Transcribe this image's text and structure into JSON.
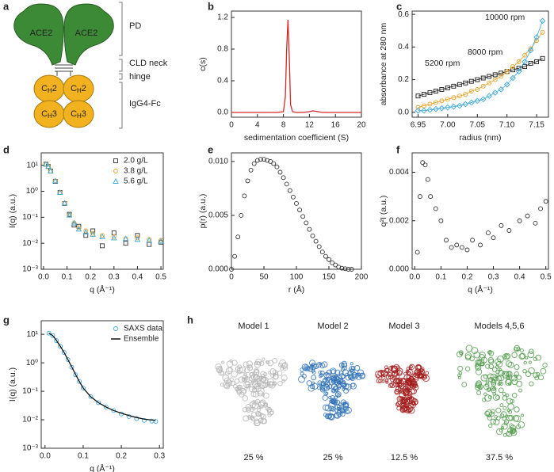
{
  "schematic": {
    "panel": "a",
    "domains": [
      "ACE2",
      "ACE2"
    ],
    "brackets": [
      "PD",
      "CLD neck",
      "hinge",
      "IgG4-Fc"
    ],
    "fc": [
      {
        "c": "C",
        "sub": "H",
        "num": "2"
      },
      {
        "c": "C",
        "sub": "H",
        "num": "2"
      },
      {
        "c": "C",
        "sub": "H",
        "num": "3"
      },
      {
        "c": "C",
        "sub": "H",
        "num": "3"
      }
    ]
  },
  "chart_data": [
    {
      "type": "line",
      "panel": "b",
      "xlabel": "sedimentation coefficient (S)",
      "ylabel": "c(s)",
      "xlim": [
        0,
        20
      ],
      "xticks": [
        0,
        4,
        8,
        12,
        16,
        20
      ],
      "ylim": [
        -0.06,
        1.28
      ],
      "yticks": [
        {
          "value": 0,
          "label": "0.0"
        },
        0.4,
        0.8,
        1.2
      ],
      "x": [
        0,
        2,
        4,
        6,
        7,
        8,
        8.3,
        8.5,
        8.7,
        8.9,
        9.1,
        9.4,
        10,
        11,
        12,
        12.5,
        13,
        14,
        16,
        18,
        20
      ],
      "series": [
        {
          "color": "#d62728",
          "marker": "none",
          "values": [
            0,
            0,
            0,
            0,
            0,
            0.01,
            0.2,
            0.8,
            1.17,
            0.7,
            0.1,
            0.01,
            0,
            0,
            0.01,
            0.02,
            0.015,
            0,
            0,
            0,
            0
          ]
        }
      ]
    },
    {
      "type": "scatter",
      "panel": "c",
      "xlabel": "radius (nm)",
      "ylabel": "absorbance at 280 nm",
      "legend": "inline",
      "xlim": [
        6.94,
        7.17
      ],
      "xticks": [
        6.95,
        {
          "value": 7,
          "label": "7.00"
        },
        7.05,
        {
          "value": 7.1,
          "label": "7.10"
        },
        7.15
      ],
      "ylim": [
        -0.03,
        0.62
      ],
      "yticks": [
        {
          "value": 0,
          "label": "0.0"
        },
        0.2,
        0.4,
        0.6
      ],
      "x": [
        6.95,
        6.96,
        6.97,
        6.98,
        6.99,
        7.0,
        7.01,
        7.02,
        7.03,
        7.04,
        7.05,
        7.06,
        7.07,
        7.08,
        7.09,
        7.1,
        7.11,
        7.12,
        7.13,
        7.14,
        7.15,
        7.16
      ],
      "series": [
        {
          "name": "5200 rpm",
          "color": "#1a1a1a",
          "marker": "square",
          "values": [
            0.1,
            0.11,
            0.12,
            0.13,
            0.14,
            0.15,
            0.16,
            0.17,
            0.18,
            0.19,
            0.2,
            0.21,
            0.22,
            0.23,
            0.24,
            0.25,
            0.26,
            0.27,
            0.28,
            0.3,
            0.31,
            0.33
          ]
        },
        {
          "name": "8000 rpm",
          "color": "#e8a020",
          "marker": "circle",
          "values": [
            0.03,
            0.04,
            0.05,
            0.06,
            0.07,
            0.08,
            0.09,
            0.1,
            0.11,
            0.13,
            0.14,
            0.16,
            0.18,
            0.2,
            0.22,
            0.25,
            0.28,
            0.31,
            0.35,
            0.39,
            0.44,
            0.49
          ]
        },
        {
          "name": "10000 rpm",
          "color": "#3aa8dc",
          "marker": "diamond",
          "values": [
            0.01,
            0.01,
            0.015,
            0.02,
            0.025,
            0.03,
            0.035,
            0.04,
            0.05,
            0.06,
            0.07,
            0.08,
            0.1,
            0.12,
            0.14,
            0.17,
            0.21,
            0.25,
            0.31,
            0.38,
            0.46,
            0.56
          ]
        }
      ]
    },
    {
      "type": "scatter",
      "panel": "d",
      "xlabel": "q (Å⁻¹)",
      "ylabel": "I(q) (a.u.)",
      "log_y": true,
      "legend": "upper right",
      "xlim": [
        -0.01,
        0.51
      ],
      "xticks": [
        {
          "value": 0,
          "label": "0.0"
        },
        0.1,
        0.2,
        0.3,
        0.4,
        0.5
      ],
      "ylim": [
        0.001,
        30
      ],
      "yticks": [
        {
          "value": 0.001,
          "label": "10⁻³"
        },
        {
          "value": 0.01,
          "label": "10⁻²"
        },
        {
          "value": 0.1,
          "label": "10⁻¹"
        },
        {
          "value": 1,
          "label": "10⁰"
        },
        {
          "value": 10,
          "label": "10¹"
        }
      ],
      "x": [
        0.01,
        0.02,
        0.03,
        0.05,
        0.07,
        0.09,
        0.11,
        0.13,
        0.15,
        0.18,
        0.21,
        0.25,
        0.3,
        0.35,
        0.4,
        0.45,
        0.5
      ],
      "series": [
        {
          "name": "2.0 g/L",
          "color": "#333333",
          "marker": "square",
          "values": [
            11,
            9,
            6,
            2.4,
            0.9,
            0.34,
            0.13,
            0.05,
            0.045,
            0.02,
            0.03,
            0.008,
            0.025,
            0.01,
            0.02,
            0.009,
            0.011
          ]
        },
        {
          "name": "3.8 g/L",
          "color": "#e8a020",
          "marker": "circle",
          "values": [
            11,
            9,
            6,
            2.5,
            0.9,
            0.35,
            0.12,
            0.06,
            0.04,
            0.03,
            0.024,
            0.02,
            0.018,
            0.015,
            0.016,
            0.014,
            0.013
          ]
        },
        {
          "name": "5.6 g/L",
          "color": "#3aa8dc",
          "marker": "triangle",
          "values": [
            11,
            9,
            6,
            2.5,
            0.9,
            0.35,
            0.12,
            0.06,
            0.035,
            0.027,
            0.022,
            0.018,
            0.016,
            0.015,
            0.014,
            0.013,
            0.012
          ]
        }
      ]
    },
    {
      "type": "scatter",
      "panel": "e",
      "xlabel": "r (Å)",
      "ylabel": "p(r) (a.u.)",
      "xlim": [
        0,
        200
      ],
      "xticks": [
        0,
        50,
        100,
        150,
        200
      ],
      "ylim": [
        0,
        0.0108
      ],
      "yticks": [
        {
          "value": 0,
          "label": "0.000"
        },
        0.005,
        {
          "value": 0.01,
          "label": "0.010"
        }
      ],
      "x": [
        0,
        5,
        10,
        15,
        20,
        25,
        30,
        35,
        40,
        45,
        50,
        55,
        60,
        65,
        70,
        75,
        80,
        85,
        90,
        95,
        100,
        105,
        110,
        115,
        120,
        125,
        130,
        135,
        140,
        145,
        150,
        155,
        160,
        165,
        170,
        175,
        180,
        185
      ],
      "series": [
        {
          "color": "#333333",
          "marker": "circle",
          "values": [
            0,
            0.0012,
            0.003,
            0.005,
            0.0068,
            0.0082,
            0.0092,
            0.0098,
            0.0101,
            0.0102,
            0.0102,
            0.0101,
            0.01,
            0.0098,
            0.0095,
            0.009,
            0.0085,
            0.0079,
            0.0073,
            0.0067,
            0.0061,
            0.0055,
            0.0049,
            0.0043,
            0.0037,
            0.0031,
            0.0026,
            0.0021,
            0.0016,
            0.0012,
            0.0009,
            0.0006,
            0.0004,
            0.0002,
            0.0001,
            5e-05,
            0,
            0
          ]
        }
      ]
    },
    {
      "type": "scatter",
      "panel": "f",
      "xlabel": "q (Å⁻¹)",
      "ylabel": "q²I (a.u.)",
      "xlim": [
        -0.01,
        0.51
      ],
      "xticks": [
        {
          "value": 0,
          "label": "0.0"
        },
        0.1,
        0.2,
        0.3,
        0.4,
        0.5
      ],
      "ylim": [
        0,
        0.0048
      ],
      "yticks": [
        {
          "value": 0,
          "label": "0.000"
        },
        0.002,
        0.004
      ],
      "x": [
        0.01,
        0.02,
        0.03,
        0.04,
        0.05,
        0.06,
        0.08,
        0.1,
        0.12,
        0.14,
        0.16,
        0.18,
        0.2,
        0.22,
        0.25,
        0.28,
        0.3,
        0.33,
        0.36,
        0.4,
        0.43,
        0.46,
        0.48,
        0.5
      ],
      "series": [
        {
          "color": "#333333",
          "marker": "circle",
          "values": [
            0.0007,
            0.003,
            0.0044,
            0.0043,
            0.0037,
            0.003,
            0.0025,
            0.002,
            0.0012,
            0.0009,
            0.001,
            0.0009,
            0.0008,
            0.0012,
            0.001,
            0.0015,
            0.0013,
            0.0018,
            0.0016,
            0.002,
            0.0022,
            0.0019,
            0.0025,
            0.0028
          ]
        }
      ]
    },
    {
      "type": "scatter",
      "panel": "g",
      "xlabel": "q (Å⁻¹)",
      "ylabel": "I(q) (a.u.)",
      "log_y": true,
      "legend": "upper right",
      "xlim": [
        -0.01,
        0.31
      ],
      "xticks": [
        {
          "value": 0,
          "label": "0.0"
        },
        0.1,
        0.2,
        0.3
      ],
      "ylim": [
        0.001,
        30
      ],
      "yticks": [
        {
          "value": 0.001,
          "label": "10⁻³"
        },
        {
          "value": 0.01,
          "label": "10⁻²"
        },
        {
          "value": 0.1,
          "label": "10⁻¹"
        },
        {
          "value": 1,
          "label": "10⁰"
        },
        {
          "value": 10,
          "label": "10¹"
        }
      ],
      "x": [
        0.01,
        0.02,
        0.03,
        0.04,
        0.05,
        0.06,
        0.07,
        0.08,
        0.09,
        0.1,
        0.12,
        0.14,
        0.16,
        0.18,
        0.2,
        0.22,
        0.24,
        0.26,
        0.28,
        0.29
      ],
      "series": [
        {
          "name": "SAXS data",
          "color": "#3aa8dc",
          "marker": "circle",
          "values": [
            11,
            9,
            6,
            3.8,
            2.3,
            1.3,
            0.7,
            0.38,
            0.22,
            0.13,
            0.065,
            0.04,
            0.028,
            0.021,
            0.016,
            0.013,
            0.011,
            0.0095,
            0.009,
            0.0088
          ]
        },
        {
          "name": "Ensemble",
          "color": "#111111",
          "marker": "none",
          "values": [
            11,
            9.1,
            6.1,
            3.8,
            2.3,
            1.3,
            0.72,
            0.39,
            0.22,
            0.13,
            0.064,
            0.04,
            0.028,
            0.021,
            0.017,
            0.014,
            0.012,
            0.0105,
            0.0098,
            0.0095
          ]
        }
      ]
    }
  ],
  "models": {
    "panel": "h",
    "items": [
      {
        "title": "Model 1",
        "share": "25 %",
        "color": "#b5b5b5"
      },
      {
        "title": "Model 2",
        "share": "25 %",
        "color": "#2f72b8"
      },
      {
        "title": "Model 3",
        "share": "12.5 %",
        "color": "#a31b1b"
      },
      {
        "title": "Models 4,5,6",
        "share": "37.5 %",
        "color": "#4f9a4a"
      }
    ]
  }
}
